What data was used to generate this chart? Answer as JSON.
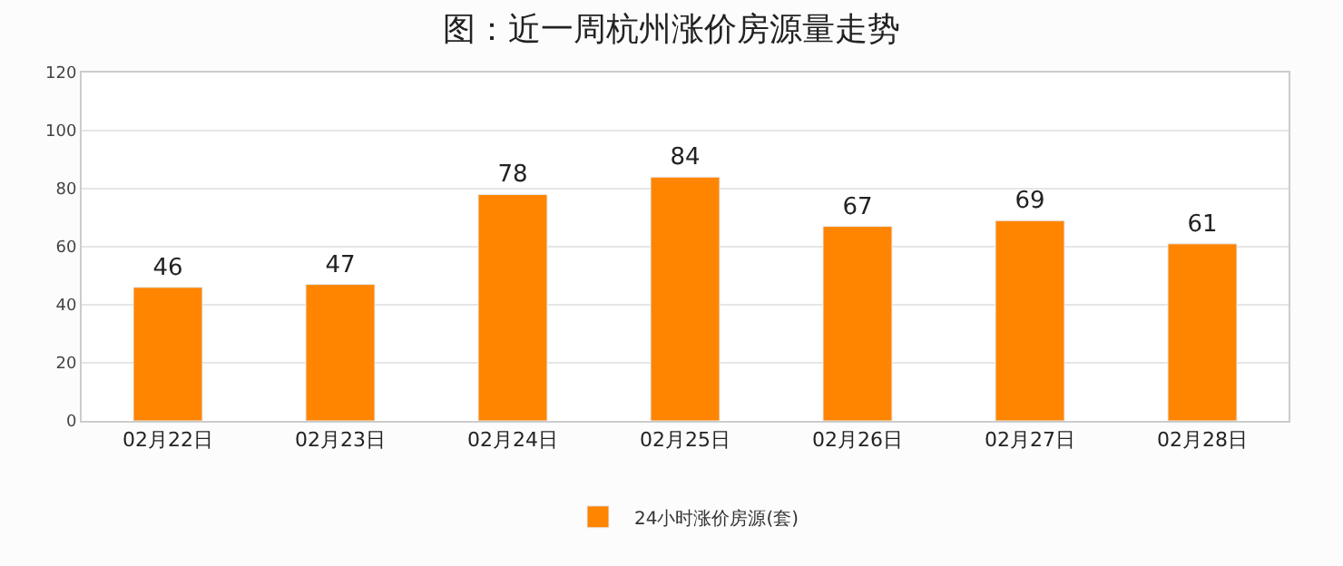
{
  "chart_data": {
    "type": "bar",
    "title": "图：近一周杭州涨价房源量走势",
    "categories": [
      "02月22日",
      "02月23日",
      "02月24日",
      "02月25日",
      "02月26日",
      "02月27日",
      "02月28日"
    ],
    "series": [
      {
        "name": "24小时涨价房源(套)",
        "color": "#ff8500",
        "values": [
          46,
          47,
          78,
          84,
          67,
          69,
          61
        ]
      }
    ],
    "ylim": [
      0,
      120
    ],
    "yticks": [
      0,
      20,
      40,
      60,
      80,
      100,
      120
    ],
    "grid": "y",
    "legend": "bottom",
    "data_labels": true
  }
}
